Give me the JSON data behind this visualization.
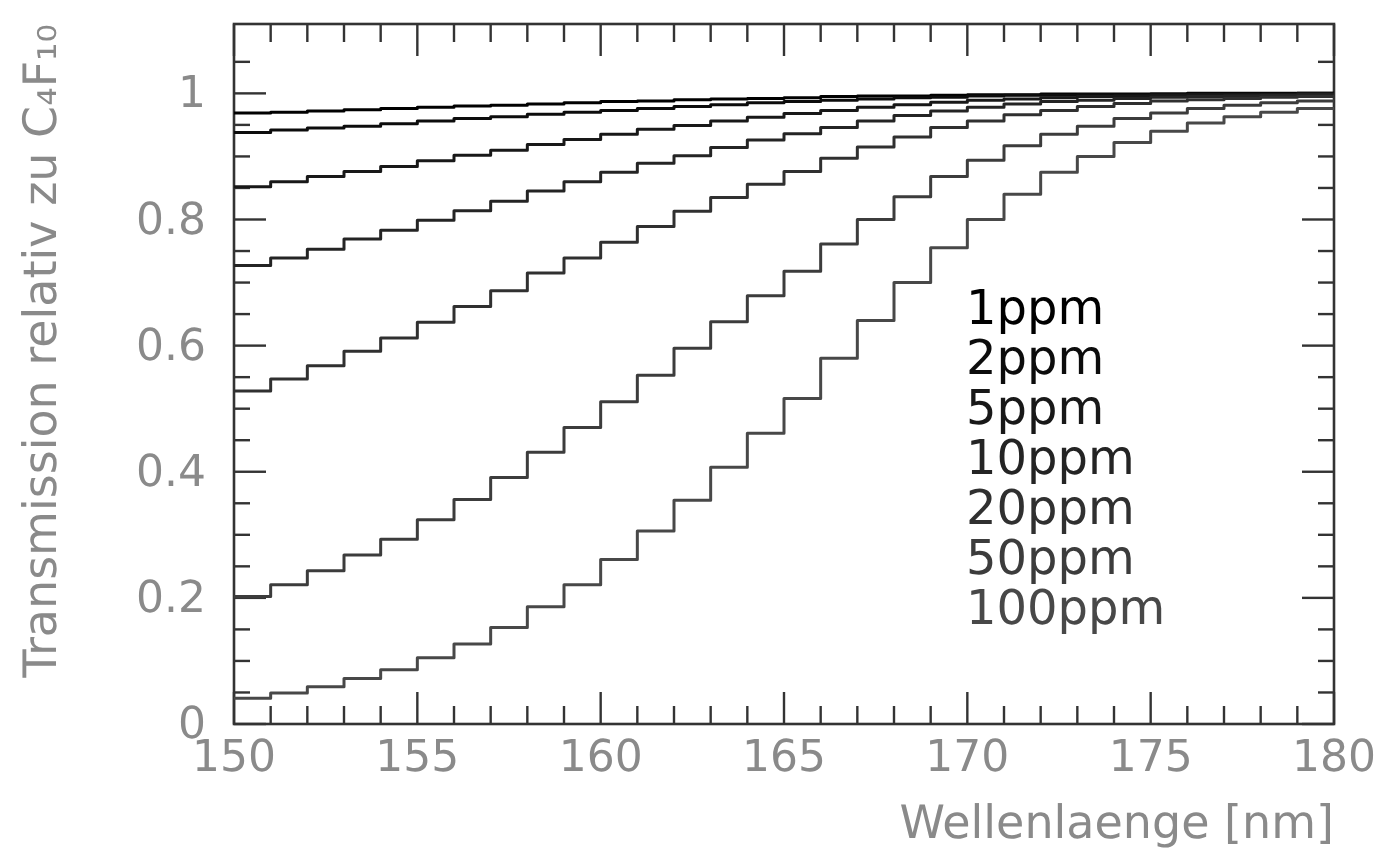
{
  "chart_data": {
    "type": "histogram",
    "xlabel": "Wellenlaenge [nm]",
    "ylabel": "Transmission relativ zu C₄F₁₀",
    "bins": [
      150,
      151,
      152,
      153,
      154,
      155,
      156,
      157,
      158,
      159,
      160,
      161,
      162,
      163,
      164,
      165,
      166,
      167,
      168,
      169,
      170,
      171,
      172,
      173,
      174,
      175,
      176,
      177,
      178,
      179,
      180
    ],
    "xlim": [
      150,
      180
    ],
    "xticks": [
      150,
      {
        "value": 151,
        "label": null
      },
      {
        "value": 152,
        "label": null
      },
      {
        "value": 153,
        "label": null
      },
      {
        "value": 154,
        "label": null
      },
      155,
      {
        "value": 156,
        "label": null
      },
      {
        "value": 157,
        "label": null
      },
      {
        "value": 158,
        "label": null
      },
      {
        "value": 159,
        "label": null
      },
      160,
      {
        "value": 161,
        "label": null
      },
      {
        "value": 162,
        "label": null
      },
      {
        "value": 163,
        "label": null
      },
      {
        "value": 164,
        "label": null
      },
      165,
      {
        "value": 166,
        "label": null
      },
      {
        "value": 167,
        "label": null
      },
      {
        "value": 168,
        "label": null
      },
      {
        "value": 169,
        "label": null
      },
      170,
      {
        "value": 171,
        "label": null
      },
      {
        "value": 172,
        "label": null
      },
      {
        "value": 173,
        "label": null
      },
      {
        "value": 174,
        "label": null
      },
      175,
      {
        "value": 176,
        "label": null
      },
      {
        "value": 177,
        "label": null
      },
      {
        "value": 178,
        "label": null
      },
      {
        "value": 179,
        "label": null
      },
      180
    ],
    "ylim": [
      0,
      1.11
    ],
    "yticks": [
      0,
      {
        "value": 0.05,
        "label": null
      },
      {
        "value": 0.1,
        "label": null
      },
      {
        "value": 0.15,
        "label": null
      },
      {
        "value": 0.2,
        "label": "0.2"
      },
      {
        "value": 0.25,
        "label": null
      },
      {
        "value": 0.3,
        "label": null
      },
      {
        "value": 0.35,
        "label": null
      },
      {
        "value": 0.4,
        "label": "0.4"
      },
      {
        "value": 0.45,
        "label": null
      },
      {
        "value": 0.5,
        "label": null
      },
      {
        "value": 0.55,
        "label": null
      },
      {
        "value": 0.6,
        "label": "0.6"
      },
      {
        "value": 0.65,
        "label": null
      },
      {
        "value": 0.7,
        "label": null
      },
      {
        "value": 0.75,
        "label": null
      },
      {
        "value": 0.8,
        "label": "0.8"
      },
      {
        "value": 0.85,
        "label": null
      },
      {
        "value": 0.9,
        "label": null
      },
      {
        "value": 0.95,
        "label": null
      },
      1,
      {
        "value": 1.05,
        "label": null
      }
    ],
    "grid": false,
    "legend": "right",
    "series": [
      {
        "name": "1ppm",
        "color": "#000000",
        "values": [
          0.969,
          0.97,
          0.972,
          0.974,
          0.976,
          0.978,
          0.98,
          0.981,
          0.983,
          0.985,
          0.987,
          0.988,
          0.99,
          0.991,
          0.992,
          0.993,
          0.995,
          0.996,
          0.996,
          0.997,
          0.998,
          0.998,
          0.999,
          0.999,
          0.999,
          0.999,
          1.0,
          1.0,
          1.0,
          1.0
        ]
      },
      {
        "name": "2ppm",
        "color": "#0c0c0c",
        "values": [
          0.938,
          0.942,
          0.945,
          0.948,
          0.952,
          0.956,
          0.96,
          0.963,
          0.967,
          0.97,
          0.973,
          0.976,
          0.979,
          0.982,
          0.985,
          0.987,
          0.989,
          0.991,
          0.993,
          0.994,
          0.996,
          0.997,
          0.997,
          0.998,
          0.998,
          0.999,
          0.999,
          0.999,
          0.999,
          1.0
        ]
      },
      {
        "name": "5ppm",
        "color": "#181818",
        "values": [
          0.852,
          0.86,
          0.868,
          0.876,
          0.884,
          0.893,
          0.902,
          0.91,
          0.919,
          0.927,
          0.935,
          0.943,
          0.949,
          0.956,
          0.962,
          0.968,
          0.973,
          0.978,
          0.982,
          0.986,
          0.989,
          0.991,
          0.993,
          0.995,
          0.996,
          0.997,
          0.998,
          0.998,
          0.998,
          0.999
        ]
      },
      {
        "name": "10ppm",
        "color": "#242424",
        "values": [
          0.727,
          0.739,
          0.753,
          0.769,
          0.783,
          0.799,
          0.814,
          0.829,
          0.845,
          0.86,
          0.875,
          0.889,
          0.901,
          0.914,
          0.926,
          0.936,
          0.946,
          0.956,
          0.965,
          0.972,
          0.978,
          0.983,
          0.987,
          0.989,
          0.992,
          0.994,
          0.995,
          0.996,
          0.997,
          0.998
        ]
      },
      {
        "name": "20ppm",
        "color": "#303030",
        "values": [
          0.528,
          0.547,
          0.568,
          0.591,
          0.612,
          0.637,
          0.662,
          0.687,
          0.715,
          0.739,
          0.764,
          0.789,
          0.813,
          0.835,
          0.856,
          0.876,
          0.897,
          0.915,
          0.931,
          0.946,
          0.956,
          0.966,
          0.973,
          0.979,
          0.984,
          0.988,
          0.99,
          0.992,
          0.994,
          0.995
        ]
      },
      {
        "name": "50ppm",
        "color": "#3c3c3c",
        "values": [
          0.202,
          0.221,
          0.243,
          0.268,
          0.293,
          0.324,
          0.356,
          0.391,
          0.431,
          0.47,
          0.511,
          0.553,
          0.596,
          0.638,
          0.679,
          0.718,
          0.761,
          0.8,
          0.836,
          0.868,
          0.894,
          0.917,
          0.935,
          0.948,
          0.96,
          0.969,
          0.976,
          0.981,
          0.985,
          0.988
        ]
      },
      {
        "name": "100ppm",
        "color": "#484848",
        "values": [
          0.041,
          0.049,
          0.059,
          0.072,
          0.086,
          0.105,
          0.127,
          0.153,
          0.186,
          0.221,
          0.261,
          0.306,
          0.355,
          0.407,
          0.461,
          0.516,
          0.58,
          0.64,
          0.7,
          0.755,
          0.8,
          0.84,
          0.875,
          0.9,
          0.922,
          0.94,
          0.953,
          0.963,
          0.97,
          0.976
        ]
      }
    ]
  }
}
